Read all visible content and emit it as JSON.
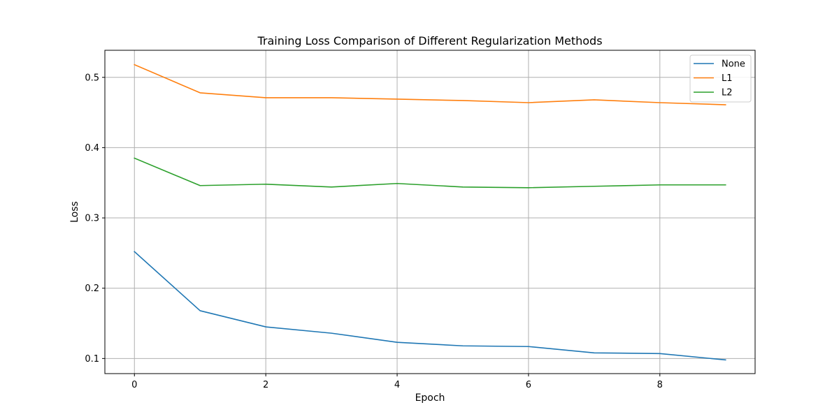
{
  "chart_data": {
    "type": "line",
    "title": "Training Loss Comparison of Different Regularization Methods",
    "xlabel": "Epoch",
    "ylabel": "Loss",
    "x": [
      0,
      1,
      2,
      3,
      4,
      5,
      6,
      7,
      8,
      9
    ],
    "xlim": [
      -0.45,
      9.45
    ],
    "ylim": [
      0.0785,
      0.5385
    ],
    "xticks": [
      0,
      2,
      4,
      6,
      8
    ],
    "yticks": [
      0.1,
      0.2,
      0.3,
      0.4,
      0.5
    ],
    "xtick_labels": [
      "0",
      "2",
      "4",
      "6",
      "8"
    ],
    "ytick_labels": [
      "0.1",
      "0.2",
      "0.3",
      "0.4",
      "0.5"
    ],
    "grid": true,
    "legend_position": "top-right",
    "series": [
      {
        "name": "None",
        "color": "#1f77b4",
        "values": [
          0.252,
          0.168,
          0.145,
          0.136,
          0.123,
          0.118,
          0.117,
          0.108,
          0.107,
          0.098
        ]
      },
      {
        "name": "L1",
        "color": "#ff7f0e",
        "values": [
          0.518,
          0.478,
          0.471,
          0.471,
          0.469,
          0.467,
          0.464,
          0.468,
          0.464,
          0.461
        ]
      },
      {
        "name": "L2",
        "color": "#2ca02c",
        "values": [
          0.385,
          0.346,
          0.348,
          0.344,
          0.349,
          0.344,
          0.343,
          0.345,
          0.347,
          0.347
        ]
      }
    ]
  }
}
